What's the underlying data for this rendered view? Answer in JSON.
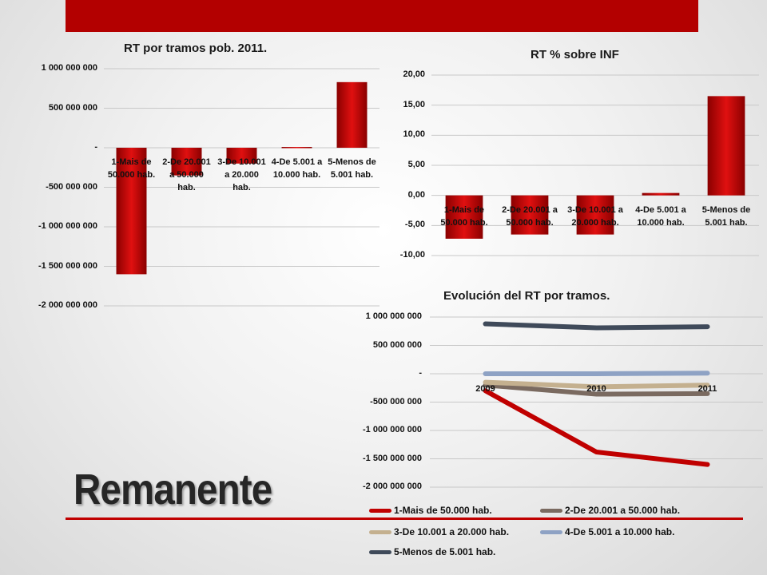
{
  "heading": "Remanente",
  "colors": {
    "banner": "#b30000",
    "accent": "#c00000"
  },
  "chart_data": [
    {
      "type": "bar",
      "title": "RT por tramos pob. 2011.",
      "categories": [
        "1-Mais de 50.000 hab.",
        "2-De 20.001 a 50.000 hab.",
        "3-De 10.001 a 20.000 hab.",
        "4-De 5.001 a 10.000 hab.",
        "5-Menos de 5.001 hab."
      ],
      "values": [
        -1600000000,
        -350000000,
        -200000000,
        10000000,
        830000000
      ],
      "ylim": [
        -2000000000,
        1000000000
      ],
      "yticks": [
        "1 000 000 000",
        "500 000 000",
        "-",
        "-500 000 000",
        "-1 000 000 000",
        "-1 500 000 000",
        "-2 000 000 000"
      ],
      "grid": true
    },
    {
      "type": "bar",
      "title": "RT % sobre INF",
      "categories": [
        "1-Mais de 50.000 hab.",
        "2-De 20.001 a 50.000 hab.",
        "3-De 10.001 a 20.000 hab.",
        "4-De 5.001 a 10.000 hab.",
        "5-Menos de 5.001 hab."
      ],
      "values": [
        -7.2,
        -6.5,
        -6.5,
        0.4,
        16.5
      ],
      "ylim": [
        -10,
        20
      ],
      "yticks": [
        "20,00",
        "15,00",
        "10,00",
        "5,00",
        "0,00",
        "-5,00",
        "-10,00"
      ],
      "grid": true
    },
    {
      "type": "line",
      "title": "Evolución del RT por tramos.",
      "x": [
        "2009",
        "2010",
        "2011"
      ],
      "series": [
        {
          "name": "1-Mais de 50.000 hab.",
          "values": [
            -300000000,
            -1380000000,
            -1600000000
          ],
          "color": "#c00000"
        },
        {
          "name": "2-De 20.001 a 50.000 hab.",
          "values": [
            -200000000,
            -360000000,
            -350000000
          ],
          "color": "#7a6a60"
        },
        {
          "name": "3-De 10.001 a 20.000 hab.",
          "values": [
            -150000000,
            -230000000,
            -200000000
          ],
          "color": "#c4b08f"
        },
        {
          "name": "4-De 5.001 a 10.000 hab.",
          "values": [
            0,
            0,
            10000000
          ],
          "color": "#8ea2c4"
        },
        {
          "name": "5-Menos de 5.001 hab.",
          "values": [
            880000000,
            810000000,
            830000000
          ],
          "color": "#3f4a5a"
        }
      ],
      "ylim": [
        -2000000000,
        1000000000
      ],
      "yticks": [
        "1 000 000 000",
        "500 000 000",
        "-",
        "-500 000 000",
        "-1 000 000 000",
        "-1 500 000 000",
        "-2 000 000 000"
      ],
      "legend": "bottom",
      "grid": true
    }
  ]
}
